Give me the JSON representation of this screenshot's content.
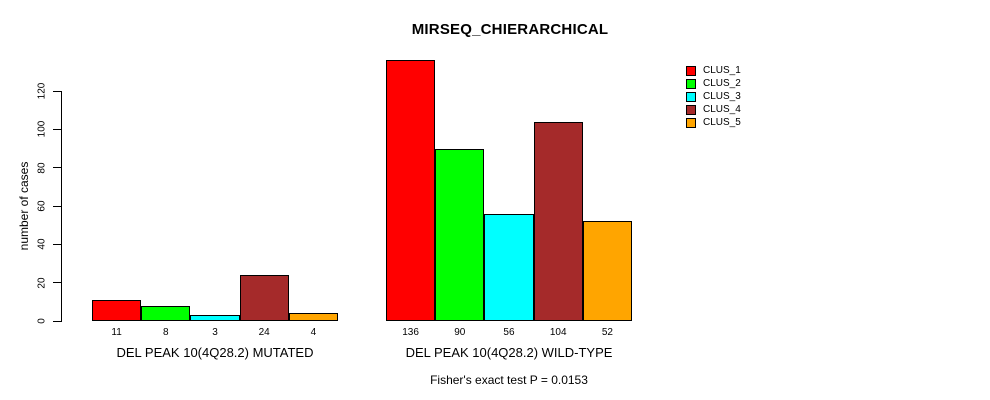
{
  "chart_data": {
    "type": "bar",
    "title": "MIRSEQ_CHIERARCHICAL",
    "ylabel": "number of cases",
    "xlabel": "",
    "ylim": [
      0,
      136
    ],
    "yticks": [
      0,
      20,
      40,
      60,
      80,
      100,
      120
    ],
    "grid": false,
    "legend_position": "top-right",
    "bar_value_labels_shown": true,
    "categories": [
      "DEL PEAK 10(4Q28.2) MUTATED",
      "DEL PEAK 10(4Q28.2) WILD-TYPE"
    ],
    "series": [
      {
        "name": "CLUS_1",
        "color": "#FF0000",
        "values": [
          11,
          136
        ]
      },
      {
        "name": "CLUS_2",
        "color": "#00FF00",
        "values": [
          8,
          90
        ]
      },
      {
        "name": "CLUS_3",
        "color": "#00FFFF",
        "values": [
          3,
          56
        ]
      },
      {
        "name": "CLUS_4",
        "color": "#A52A2A",
        "values": [
          24,
          104
        ]
      },
      {
        "name": "CLUS_5",
        "color": "#FFA500",
        "values": [
          4,
          52
        ]
      }
    ],
    "annotation": "Fisher's exact test P = 0.0153"
  },
  "colors": {
    "background": "#FFFFFF",
    "text": "#000000",
    "axis": "#000000",
    "bar_border": "#000000"
  }
}
